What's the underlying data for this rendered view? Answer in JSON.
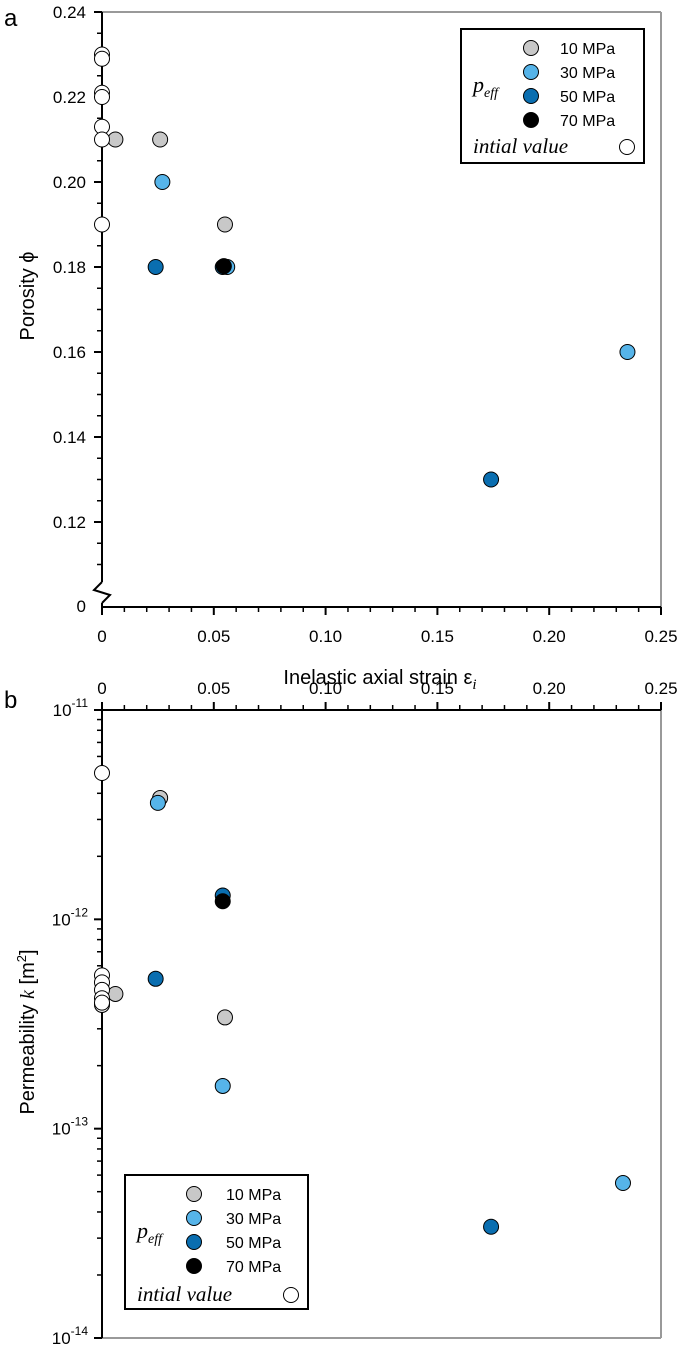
{
  "panels": {
    "a": {
      "label": "a"
    },
    "b": {
      "label": "b"
    }
  },
  "legend_top": {
    "group_label": "p",
    "group_sub": "eff",
    "items": [
      {
        "label": "10 MPa",
        "color": "#c8c8c8"
      },
      {
        "label": "30 MPa",
        "color": "#56b4e9"
      },
      {
        "label": "50 MPa",
        "color": "#0a6eb0"
      },
      {
        "label": "70 MPa",
        "color": "#000000"
      }
    ],
    "initial_label": "intial value",
    "initial_color": "#ffffff"
  },
  "legend_bottom": {
    "group_label": "p",
    "group_sub": "eff",
    "items": [
      {
        "label": "10 MPa",
        "color": "#c8c8c8"
      },
      {
        "label": "30 MPa",
        "color": "#56b4e9"
      },
      {
        "label": "50 MPa",
        "color": "#0a6eb0"
      },
      {
        "label": "70 MPa",
        "color": "#000000"
      }
    ],
    "initial_label": "intial value",
    "initial_color": "#ffffff"
  },
  "chart_data": [
    {
      "type": "scatter",
      "panel": "a",
      "xlabel": "Inelastic axial strain ε",
      "xlabel_sub": "i",
      "ylabel": "Porosity ϕ",
      "xlim": [
        0,
        0.25
      ],
      "ylim": [
        0.1,
        0.24
      ],
      "y_broken_axis": true,
      "y_axis_zero_label": "0",
      "xticks": [
        "0",
        "0.05",
        "0.10",
        "0.15",
        "0.20",
        "0.25"
      ],
      "yticks": [
        "0.12",
        "0.14",
        "0.16",
        "0.18",
        "0.20",
        "0.22",
        "0.24"
      ],
      "legend_position": "top-right",
      "series": [
        {
          "name": "10 MPa",
          "color": "#c8c8c8",
          "points": [
            [
              0.006,
              0.21
            ],
            [
              0.026,
              0.21
            ],
            [
              0.055,
              0.19
            ]
          ]
        },
        {
          "name": "30 MPa",
          "color": "#56b4e9",
          "points": [
            [
              0.027,
              0.2
            ],
            [
              0.056,
              0.18
            ],
            [
              0.235,
              0.16
            ]
          ]
        },
        {
          "name": "50 MPa",
          "color": "#0a6eb0",
          "points": [
            [
              0.024,
              0.18
            ],
            [
              0.054,
              0.18
            ],
            [
              0.174,
              0.13
            ]
          ]
        },
        {
          "name": "70 MPa",
          "color": "#000000",
          "points": [
            [
              0.0545,
              0.1802
            ]
          ]
        },
        {
          "name": "intial value",
          "color": "#ffffff",
          "points": [
            [
              0,
              0.23
            ],
            [
              0,
              0.229
            ],
            [
              0,
              0.221
            ],
            [
              0,
              0.22
            ],
            [
              0,
              0.213
            ],
            [
              0,
              0.21
            ],
            [
              0,
              0.19
            ]
          ]
        }
      ]
    },
    {
      "type": "scatter",
      "panel": "b",
      "ylabel": "Permeability",
      "ylabel_var": "k",
      "ylabel_unit": "[m",
      "ylabel_unit_sup": "2",
      "ylabel_unit_end": "]",
      "xlim": [
        0,
        0.25
      ],
      "ylim": [
        1e-14,
        1e-11
      ],
      "yscale": "log",
      "x_axis_position": "top",
      "xticks": [
        "0",
        "0.05",
        "0.10",
        "0.15",
        "0.20",
        "0.25"
      ],
      "yticks": [
        {
          "base": "10",
          "exp": "-11"
        },
        {
          "base": "10",
          "exp": "-12"
        },
        {
          "base": "10",
          "exp": "-13"
        },
        {
          "base": "10",
          "exp": "-14"
        }
      ],
      "legend_position": "bottom-left",
      "series": [
        {
          "name": "10 MPa",
          "color": "#c8c8c8",
          "points": [
            [
              0.006,
              4.4e-13
            ],
            [
              0.026,
              3.8e-12
            ],
            [
              0.055,
              3.4e-13
            ]
          ]
        },
        {
          "name": "30 MPa",
          "color": "#56b4e9",
          "points": [
            [
              0.025,
              3.6e-12
            ],
            [
              0.054,
              1.6e-13
            ],
            [
              0.233,
              5.5e-14
            ]
          ]
        },
        {
          "name": "50 MPa",
          "color": "#0a6eb0",
          "points": [
            [
              0.024,
              5.2e-13
            ],
            [
              0.054,
              1.3e-12
            ],
            [
              0.174,
              3.4e-14
            ]
          ]
        },
        {
          "name": "70 MPa",
          "color": "#000000",
          "points": [
            [
              0.054,
              1.22e-12
            ]
          ]
        },
        {
          "name": "intial value",
          "color": "#ffffff",
          "points": [
            [
              0,
              5e-12
            ],
            [
              0,
              5.4e-13
            ],
            [
              0,
              5e-13
            ],
            [
              0,
              4.6e-13
            ],
            [
              0,
              4.2e-13
            ],
            [
              0,
              3.9e-13
            ],
            [
              0,
              4e-13
            ]
          ]
        }
      ]
    }
  ]
}
